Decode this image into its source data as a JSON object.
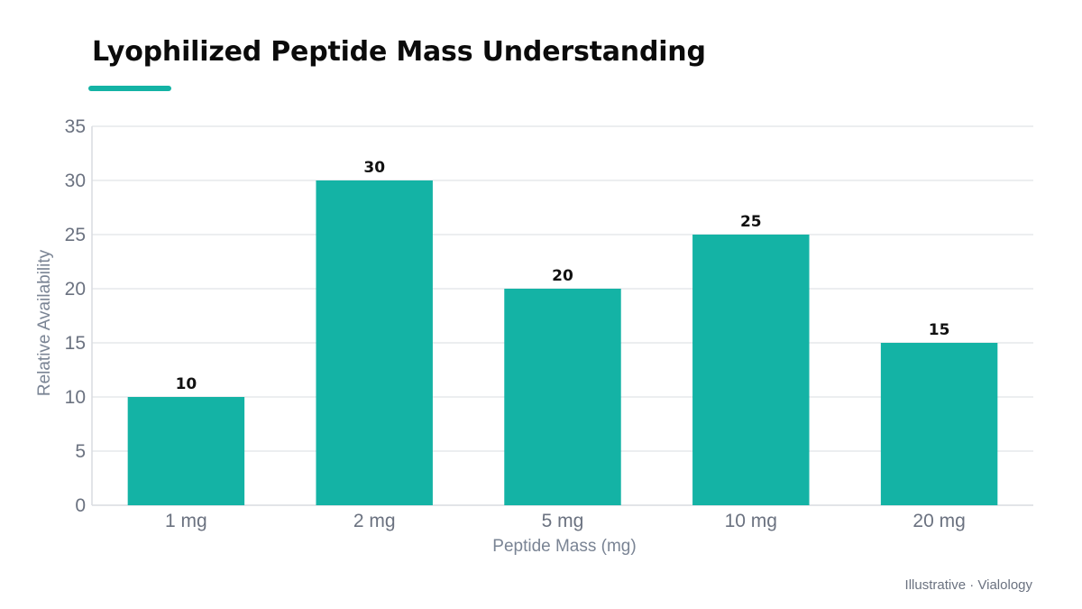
{
  "header": {
    "title": "Lyophilized Peptide Mass Understanding"
  },
  "footer": {
    "source": "Illustrative · Vialology"
  },
  "colors": {
    "bar": "#14b3a5",
    "accent": "#14b3a5",
    "grid": "#e6e8eb",
    "axis": "#d9dce0"
  },
  "chart_data": {
    "type": "bar",
    "categories": [
      "1 mg",
      "2 mg",
      "5 mg",
      "10 mg",
      "20 mg"
    ],
    "values": [
      10,
      30,
      20,
      25,
      15
    ],
    "data_labels": [
      "10",
      "30",
      "20",
      "25",
      "15"
    ],
    "title": "Lyophilized Peptide Mass Understanding",
    "xlabel": "Peptide Mass (mg)",
    "ylabel": "Relative Availability",
    "ylim": [
      0,
      35
    ],
    "yticks": [
      0,
      5,
      10,
      15,
      20,
      25,
      30,
      35
    ],
    "grid": true,
    "legend": "none"
  }
}
